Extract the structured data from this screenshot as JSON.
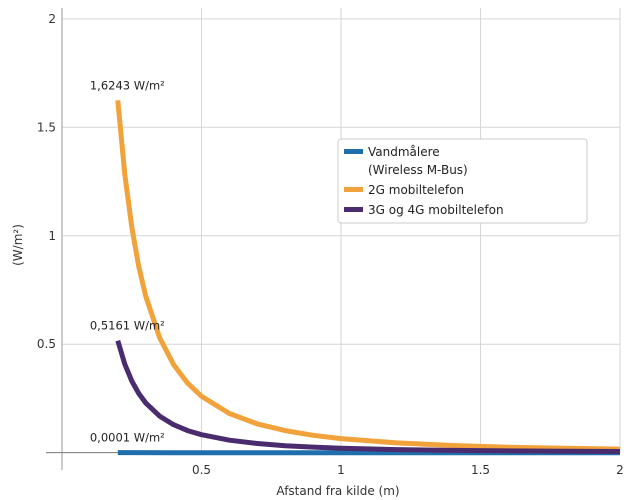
{
  "chart_data": {
    "type": "line",
    "xlabel": "Afstand fra kilde (m)",
    "ylabel": "(W/m²)",
    "xlim": [
      0,
      2
    ],
    "ylim": [
      -0.02,
      2.05
    ],
    "xticks": [
      {
        "value": 0.5,
        "label": "0.5"
      },
      {
        "value": 1,
        "label": "1"
      },
      {
        "value": 1.5,
        "label": "1.5"
      },
      {
        "value": 2,
        "label": "2"
      }
    ],
    "yticks": [
      {
        "value": 0.5,
        "label": "0.5"
      },
      {
        "value": 1,
        "label": "1"
      },
      {
        "value": 1.5,
        "label": "1.5"
      },
      {
        "value": 2,
        "label": "2"
      }
    ],
    "grid": true,
    "legend_position": "center-right",
    "series": [
      {
        "name": "Vandmålere\n(Wireless M-Bus)",
        "legend_lines": [
          "Vandmålere",
          "(Wireless M-Bus)"
        ],
        "color": "#1f6fad",
        "x": [
          0.2,
          0.4,
          0.6,
          0.8,
          1.0,
          1.2,
          1.4,
          1.6,
          1.8,
          2.0
        ],
        "y": [
          0.0001,
          2.5e-05,
          1.11e-05,
          6.25e-06,
          4e-06,
          2.78e-06,
          2.04e-06,
          1.56e-06,
          1.23e-06,
          1e-06
        ]
      },
      {
        "name": "2G mobiltelefon",
        "legend_lines": [
          "2G mobiltelefon"
        ],
        "color": "#f2a23a",
        "x": [
          0.2,
          0.225,
          0.25,
          0.275,
          0.3,
          0.35,
          0.4,
          0.45,
          0.5,
          0.6,
          0.7,
          0.8,
          0.9,
          1.0,
          1.2,
          1.4,
          1.6,
          1.8,
          2.0
        ],
        "y": [
          1.6243,
          1.2834,
          1.0396,
          0.8591,
          0.7219,
          0.5304,
          0.4061,
          0.3209,
          0.2599,
          0.1805,
          0.1326,
          0.1015,
          0.0802,
          0.065,
          0.0451,
          0.0331,
          0.0254,
          0.0201,
          0.0162
        ]
      },
      {
        "name": "3G og 4G mobiltelefon",
        "legend_lines": [
          "3G og 4G mobiltelefon"
        ],
        "color": "#4a2b6e",
        "x": [
          0.2,
          0.225,
          0.25,
          0.275,
          0.3,
          0.35,
          0.4,
          0.45,
          0.5,
          0.6,
          0.7,
          0.8,
          0.9,
          1.0,
          1.2,
          1.4,
          1.6,
          1.8,
          2.0
        ],
        "y": [
          0.5161,
          0.4078,
          0.3303,
          0.273,
          0.2294,
          0.1685,
          0.129,
          0.1019,
          0.0826,
          0.0573,
          0.0421,
          0.0323,
          0.0255,
          0.0206,
          0.0143,
          0.0105,
          0.0081,
          0.0064,
          0.0052
        ]
      }
    ],
    "annotations": [
      {
        "text": "1,6243 W/m²",
        "x": 0.2,
        "y": 1.6243
      },
      {
        "text": "0,5161  W/m²",
        "x": 0.2,
        "y": 0.5161
      },
      {
        "text": "0,0001 W/m²",
        "x": 0.2,
        "y": 0.0001
      }
    ]
  }
}
